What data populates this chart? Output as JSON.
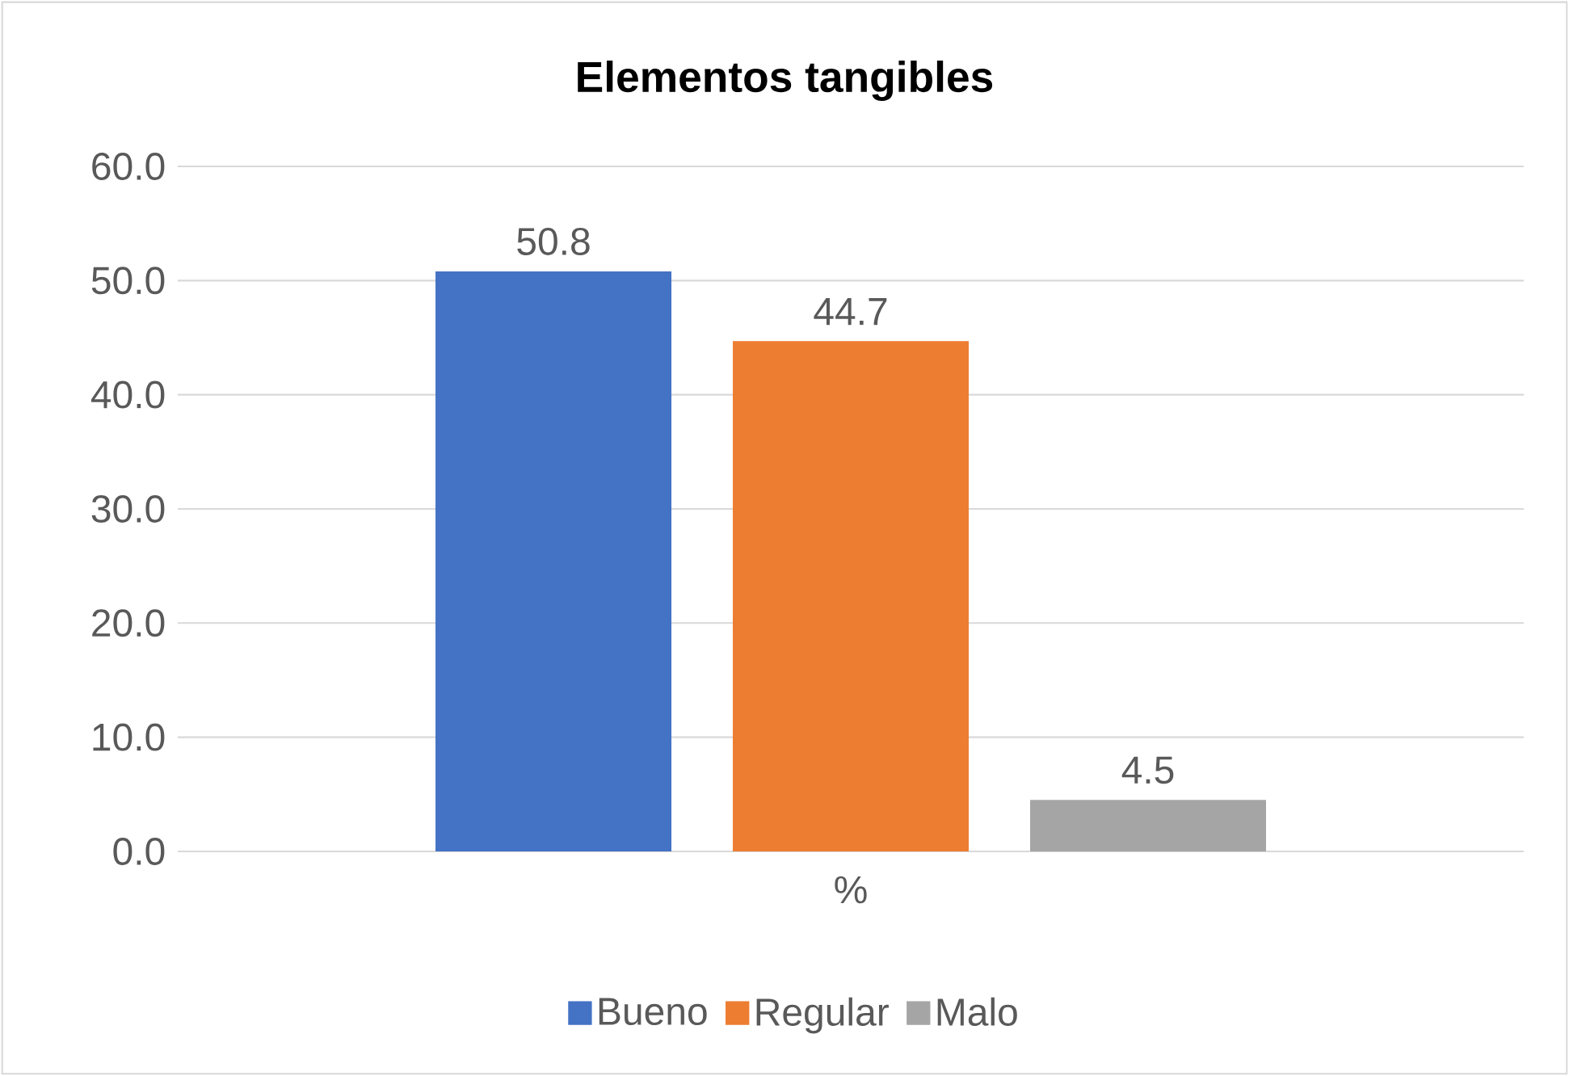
{
  "chart_data": {
    "type": "bar",
    "title": "Elementos tangibles",
    "categories": [
      "%"
    ],
    "series": [
      {
        "name": "Bueno",
        "color": "#4472c4",
        "values": [
          50.8
        ]
      },
      {
        "name": "Regular",
        "color": "#ed7d31",
        "values": [
          44.7
        ]
      },
      {
        "name": "Malo",
        "color": "#a5a5a5",
        "values": [
          4.5
        ]
      }
    ],
    "ylim": [
      0,
      60
    ],
    "yticks": [
      {
        "value": 0,
        "label": "0.0"
      },
      {
        "value": 10,
        "label": "10.0"
      },
      {
        "value": 20,
        "label": "20.0"
      },
      {
        "value": 30,
        "label": "30.0"
      },
      {
        "value": 40,
        "label": "40.0"
      },
      {
        "value": 50,
        "label": "50.0"
      },
      {
        "value": 60,
        "label": "60.0"
      }
    ],
    "grid": "y",
    "legend": "bottom",
    "data_labels": true
  }
}
